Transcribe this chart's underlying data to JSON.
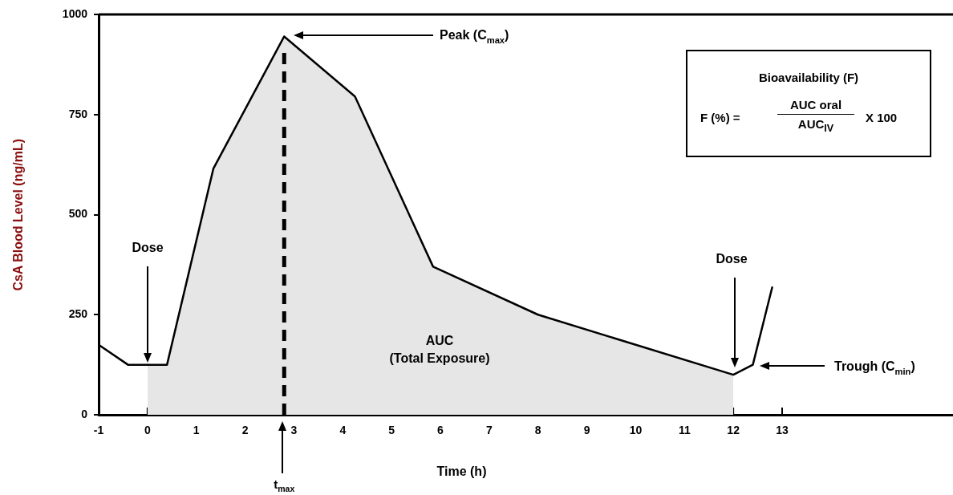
{
  "chart_data": {
    "type": "line",
    "xlabel": "Time (h)",
    "ylabel": "CsA Blood Level (ng/mL)",
    "xlim": [
      -1,
      16.5
    ],
    "xticks": [
      -1,
      0,
      1,
      2,
      3,
      4,
      5,
      6,
      7,
      8,
      9,
      10,
      11,
      12,
      13
    ],
    "ylim": [
      0,
      1000
    ],
    "yticks": [
      0,
      250,
      500,
      750,
      1000
    ],
    "legend": false,
    "series": [
      {
        "type": "area",
        "color": "#e6e6e6",
        "x": [
          0,
          0.4,
          1.35,
          2.8,
          4.25,
          5.85,
          8,
          12
        ],
        "values": [
          125,
          125,
          615,
          945,
          795,
          370,
          250,
          100
        ]
      },
      {
        "type": "line",
        "color": "#000000",
        "x": [
          -1,
          -0.4,
          0.4,
          1.35,
          2.8,
          4.25,
          5.85,
          8,
          12,
          12.4,
          12.8
        ],
        "values": [
          175,
          125,
          125,
          615,
          945,
          795,
          370,
          250,
          100,
          125,
          320
        ]
      }
    ],
    "ref_lines": [
      {
        "axis": "x",
        "value": 2.8,
        "label": "t$_{max}$",
        "color": "#000000",
        "line_style": "dashed"
      }
    ],
    "annotations": [
      "Peak (C$_{max}$)",
      "Dose",
      "Dose",
      "Trough (C$_{min}$)",
      "AUC\n(Total Exposure)",
      "Bioavailability (F)",
      "F (%) =",
      "AUC oral",
      "AUC$_{IV}$",
      "X 100"
    ]
  }
}
